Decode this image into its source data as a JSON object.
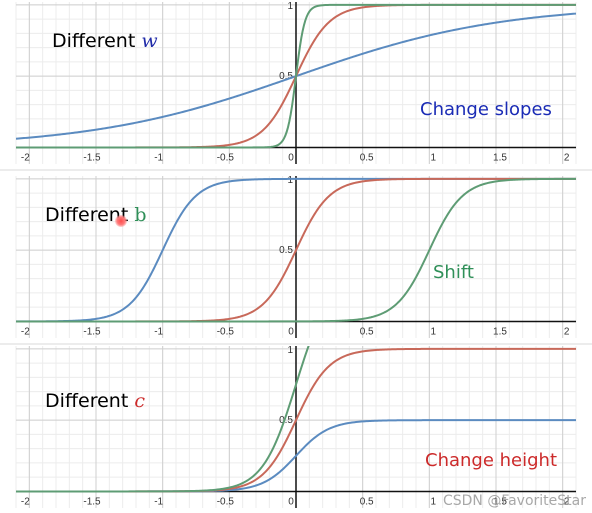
{
  "colors": {
    "blue": "#5b8bc0",
    "red": "#c8695a",
    "green": "#5e9c74",
    "grid_minor": "#ececec",
    "grid_major": "#cfcfcf",
    "axis": "#111111"
  },
  "panels": [
    {
      "label_prefix": "Different",
      "label_var": "w",
      "label_var_color": "#1f2aa8",
      "note": "Change slopes",
      "note_color": "#1a2bb5"
    },
    {
      "label_prefix": "Different",
      "label_var": "b",
      "label_var_color": "#2f8f58",
      "note": "Shift",
      "note_color": "#2f8f58"
    },
    {
      "label_prefix": "Different",
      "label_var": "c",
      "label_var_color": "#cc2a2a",
      "note": "Change height",
      "note_color": "#cc2a2a"
    }
  ],
  "watermark": "CSDN @FavoriteStar",
  "chart_data": [
    {
      "type": "line",
      "title": "Different w",
      "annotation": "Change slopes",
      "xlim": [
        -2.1,
        2.1
      ],
      "ylim": [
        -0.06,
        1.02
      ],
      "x_ticks": [
        "-2",
        "-1.5",
        "-1",
        "-0.5",
        "0",
        "0.5",
        "1",
        "1.5",
        "2"
      ],
      "y_ticks": [
        "0.5",
        "1"
      ],
      "grid": true,
      "series": [
        {
          "function": "sigmoid",
          "w": 1.3,
          "b": 0,
          "c": 1,
          "color": "#5b8bc0"
        },
        {
          "function": "sigmoid",
          "w": 8,
          "b": 0,
          "c": 1,
          "color": "#c8695a"
        },
        {
          "function": "sigmoid",
          "w": 30,
          "b": 0,
          "c": 1,
          "color": "#5e9c74"
        }
      ]
    },
    {
      "type": "line",
      "title": "Different b",
      "annotation": "Shift",
      "xlim": [
        -2.1,
        2.1
      ],
      "ylim": [
        -0.06,
        1.02
      ],
      "x_ticks": [
        "-2",
        "-1.5",
        "-1",
        "-0.5",
        "0",
        "0.5",
        "1",
        "1.5",
        "2"
      ],
      "y_ticks": [
        "0.5",
        "1"
      ],
      "grid": true,
      "series": [
        {
          "function": "sigmoid",
          "w": 8,
          "b": 8,
          "c": 1,
          "color": "#5b8bc0"
        },
        {
          "function": "sigmoid",
          "w": 8,
          "b": 0,
          "c": 1,
          "color": "#c8695a"
        },
        {
          "function": "sigmoid",
          "w": 8,
          "b": -8,
          "c": 1,
          "color": "#5e9c74"
        }
      ]
    },
    {
      "type": "line",
      "title": "Different c",
      "annotation": "Change height",
      "xlim": [
        -2.1,
        2.1
      ],
      "ylim": [
        -0.06,
        1.02
      ],
      "x_ticks": [
        "-2",
        "-1.5",
        "-1",
        "-0.5",
        "0",
        "0.5",
        "1",
        "1.5",
        "2"
      ],
      "y_ticks": [
        "0.5",
        "1"
      ],
      "grid": true,
      "series": [
        {
          "function": "sigmoid",
          "w": 8,
          "b": 0,
          "c": 0.5,
          "color": "#5b8bc0"
        },
        {
          "function": "sigmoid",
          "w": 8,
          "b": 0,
          "c": 1,
          "color": "#c8695a"
        },
        {
          "function": "sigmoid",
          "w": 8,
          "b": 0,
          "c": 1.5,
          "color": "#5e9c74"
        }
      ]
    }
  ]
}
